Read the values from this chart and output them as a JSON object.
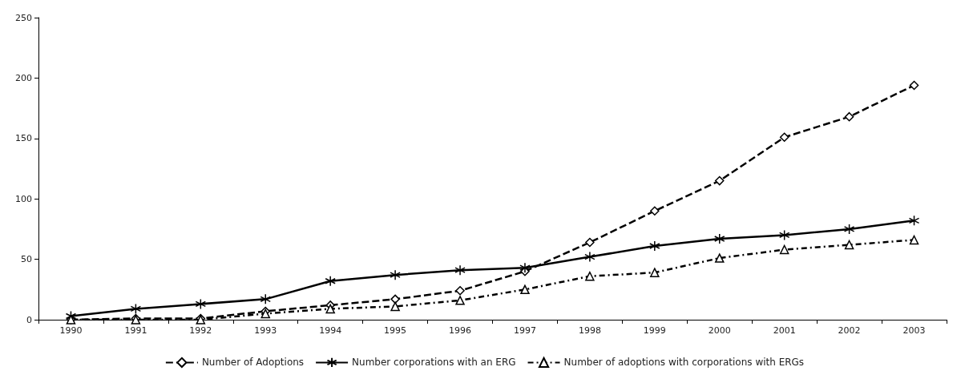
{
  "chart_data": {
    "type": "line",
    "categories": [
      "1990",
      "1991",
      "1992",
      "1993",
      "1994",
      "1995",
      "1996",
      "1997",
      "1998",
      "1999",
      "2000",
      "2001",
      "2002",
      "2003"
    ],
    "series": [
      {
        "name": "Number of Adoptions",
        "color": "#000000",
        "marker": "diamond",
        "line_style": "dashed",
        "values": [
          0,
          1,
          1,
          7,
          12,
          17,
          24,
          40,
          64,
          90,
          115,
          151,
          168,
          194
        ]
      },
      {
        "name": "Number corporations with an ERG",
        "color": "#000000",
        "marker": "cross",
        "line_style": "solid",
        "values": [
          3,
          9,
          13,
          17,
          32,
          37,
          41,
          43,
          52,
          61,
          67,
          70,
          75,
          82
        ]
      },
      {
        "name": "Number of adoptions with corporations with ERGs",
        "color": "#000000",
        "marker": "triangle",
        "line_style": "dotted",
        "values": [
          0,
          0,
          0,
          5,
          9,
          11,
          16,
          25,
          36,
          39,
          51,
          58,
          62,
          66
        ]
      }
    ],
    "ylim": [
      0,
      250
    ],
    "yticks": [
      0,
      50,
      100,
      150,
      200,
      250
    ],
    "grid": false,
    "legend": "bottom"
  }
}
